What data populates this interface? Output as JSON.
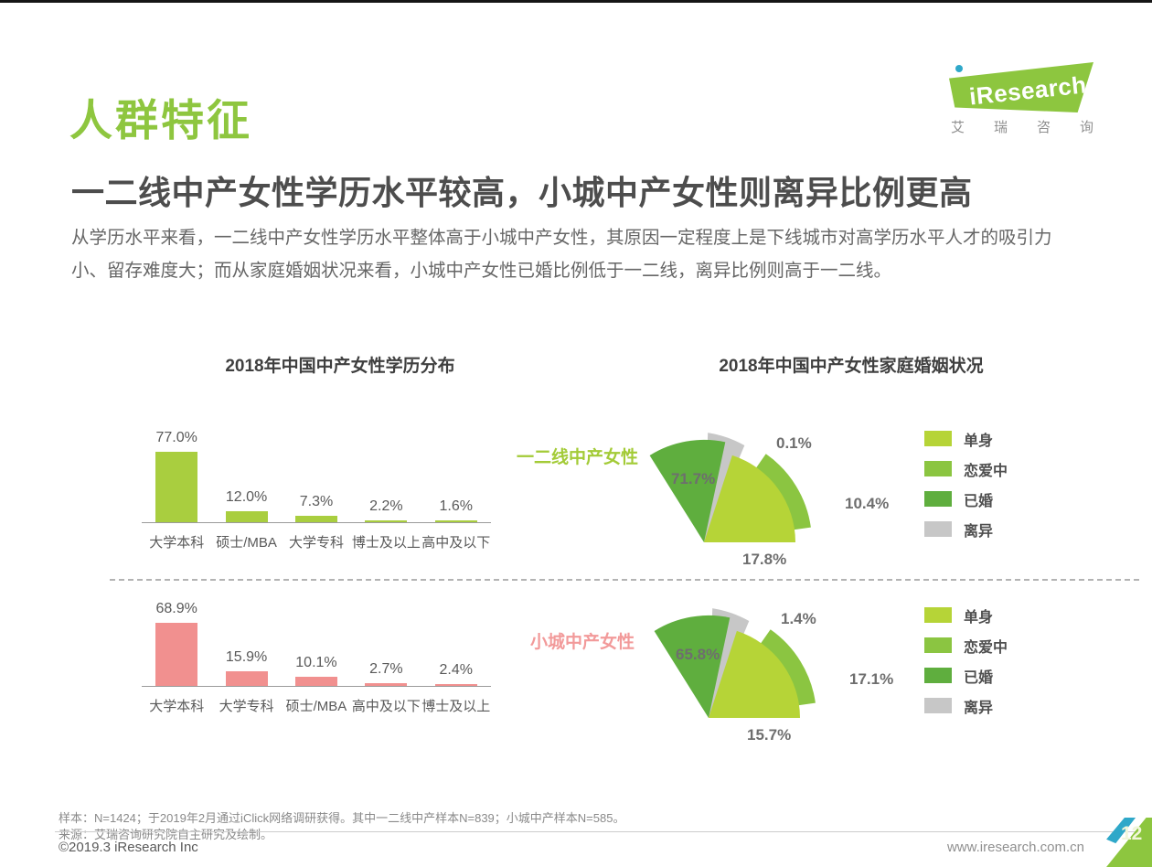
{
  "page": {
    "top_title": "人群特征",
    "page_number": "12"
  },
  "logo": {
    "brand": "iResearch",
    "subtext_chars": [
      "艾",
      "瑞",
      "咨",
      "询"
    ]
  },
  "headline": "一二线中产女性学历水平较高，小城中产女性则离异比例更高",
  "body": "从学历水平来看，一二线中产女性学历水平整体高于小城中产女性，其原因一定程度上是下线城市对高学历水平人才的吸引力小、留存难度大；而从家庭婚姻状况来看，小城中产女性已婚比例低于一二线，离异比例则高于一二线。",
  "chart_data": [
    {
      "type": "bar",
      "title": "2018年中国中产女性学历分布",
      "group": "一二线中产女性",
      "unit": "%",
      "color": "#a9ce3f",
      "categories": [
        "大学本科",
        "硕士/MBA",
        "大学专科",
        "博士及以上",
        "高中及以下"
      ],
      "values": [
        77.0,
        12.0,
        7.3,
        2.2,
        1.6
      ]
    },
    {
      "type": "bar",
      "title": "2018年中国中产女性学历分布",
      "group": "小城中产女性",
      "unit": "%",
      "color": "#f1908f",
      "categories": [
        "大学本科",
        "大学专科",
        "硕士/MBA",
        "高中及以下",
        "博士及以上"
      ],
      "values": [
        68.9,
        15.9,
        10.1,
        2.7,
        2.4
      ]
    },
    {
      "type": "rose",
      "title": "2018年中国中产女性家庭婚姻状况",
      "group": "一二线中产女性",
      "unit": "%",
      "categories": [
        "单身",
        "恋爱中",
        "已婚",
        "离异"
      ],
      "values": [
        17.8,
        10.4,
        71.7,
        0.1
      ]
    },
    {
      "type": "rose",
      "title": "2018年中国中产女性家庭婚姻状况",
      "group": "小城中产女性",
      "unit": "%",
      "categories": [
        "单身",
        "恋爱中",
        "已婚",
        "离异"
      ],
      "values": [
        15.7,
        17.1,
        65.8,
        1.4
      ]
    }
  ],
  "marriage_legend": {
    "items": [
      {
        "label": "单身",
        "color": "#b6d437"
      },
      {
        "label": "恋爱中",
        "color": "#8bc541"
      },
      {
        "label": "已婚",
        "color": "#5fae3e"
      },
      {
        "label": "离异",
        "color": "#c7c7c7"
      }
    ]
  },
  "footer": {
    "note1": "样本：N=1424；于2019年2月通过iClick网络调研获得。其中一二线中产样本N=839；小城中产样本N=585。",
    "note2": "来源：艾瑞咨询研究院自主研究及绘制。",
    "copyright": "©2019.3 iResearch Inc",
    "website": "www.iresearch.com.cn"
  },
  "colors": {
    "brand_green": "#8dc63f",
    "title_green": "#8ec63f",
    "label_green": "#a3cb37",
    "label_pink": "#f29a9a",
    "teal": "#2fa8c9"
  }
}
